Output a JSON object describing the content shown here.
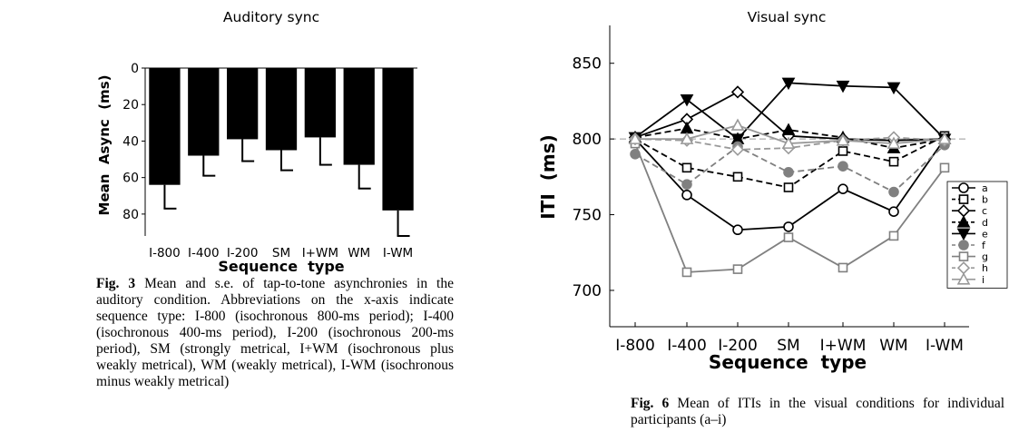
{
  "chart_data": [
    {
      "type": "bar",
      "title": "Auditory sync",
      "xlabel": "Sequence  type",
      "ylabel": "Mean  Async  (ms)",
      "categories": [
        "I-800",
        "I-400",
        "I-200",
        "SM",
        "I+WM",
        "WM",
        "I-WM"
      ],
      "values": [
        64,
        48,
        39,
        45,
        38,
        53,
        78
      ],
      "errors": [
        13,
        11,
        12,
        11,
        15,
        13,
        14
      ],
      "yticks": [
        0,
        20,
        40,
        60,
        80
      ],
      "ylim": [
        0,
        92
      ],
      "y_inverted": true,
      "bar_color": "#000000",
      "grid": false
    },
    {
      "type": "line",
      "title": "Visual sync",
      "xlabel": "Sequence  type",
      "ylabel": "ITI  (ms)",
      "categories": [
        "I-800",
        "I-400",
        "I-200",
        "SM",
        "I+WM",
        "WM",
        "I-WM"
      ],
      "yticks": [
        700,
        750,
        800,
        850
      ],
      "ylim": [
        676,
        875
      ],
      "reference_line": 800,
      "legend_position": "right",
      "grid": false,
      "series": [
        {
          "name": "a",
          "values": [
            800,
            763,
            740,
            742,
            767,
            752,
            800
          ],
          "color": "#000000",
          "dash": "solid",
          "marker": "circle-open"
        },
        {
          "name": "b",
          "values": [
            800,
            781,
            775,
            768,
            792,
            785,
            802
          ],
          "color": "#000000",
          "dash": "dashed",
          "marker": "square-open"
        },
        {
          "name": "c",
          "values": [
            801,
            813,
            831,
            802,
            800,
            799,
            800
          ],
          "color": "#000000",
          "dash": "solid",
          "marker": "diamond-open"
        },
        {
          "name": "d",
          "values": [
            801,
            807,
            800,
            806,
            801,
            794,
            800
          ],
          "color": "#000000",
          "dash": "dashed",
          "marker": "triangle-up-filled"
        },
        {
          "name": "e",
          "values": [
            801,
            826,
            800,
            837,
            835,
            834,
            800
          ],
          "color": "#000000",
          "dash": "solid",
          "marker": "triangle-down-filled"
        },
        {
          "name": "f",
          "values": [
            790,
            770,
            795,
            778,
            782,
            765,
            796
          ],
          "color": "#808080",
          "dash": "dashed",
          "marker": "circle-filled"
        },
        {
          "name": "g",
          "values": [
            797,
            712,
            714,
            735,
            715,
            736,
            781
          ],
          "color": "#808080",
          "dash": "solid",
          "marker": "square-open"
        },
        {
          "name": "h",
          "values": [
            800,
            799,
            793,
            794,
            799,
            801,
            799
          ],
          "color": "#999999",
          "dash": "dashed",
          "marker": "diamond-open"
        },
        {
          "name": "i",
          "values": [
            800,
            800,
            809,
            797,
            799,
            797,
            800
          ],
          "color": "#999999",
          "dash": "solid",
          "marker": "triangle-up-open"
        }
      ]
    }
  ],
  "captions": {
    "fig3_label": "Fig. 3",
    "fig3_text": "Mean and s.e. of tap-to-tone asynchronies in the auditory condition. Abbreviations on the x-axis indicate sequence type: I-800 (isochronous 800-ms period); I-400 (isochronous 400-ms period), I-200 (isochronous 200-ms period), SM (strongly metrical, I+WM (isochronous plus weakly metrical), WM (weakly metrical), I-WM (isochronous minus weakly metrical)",
    "fig6_label": "Fig. 6",
    "fig6_text": "Mean of ITIs in the visual conditions for individual participants (a–i)"
  }
}
